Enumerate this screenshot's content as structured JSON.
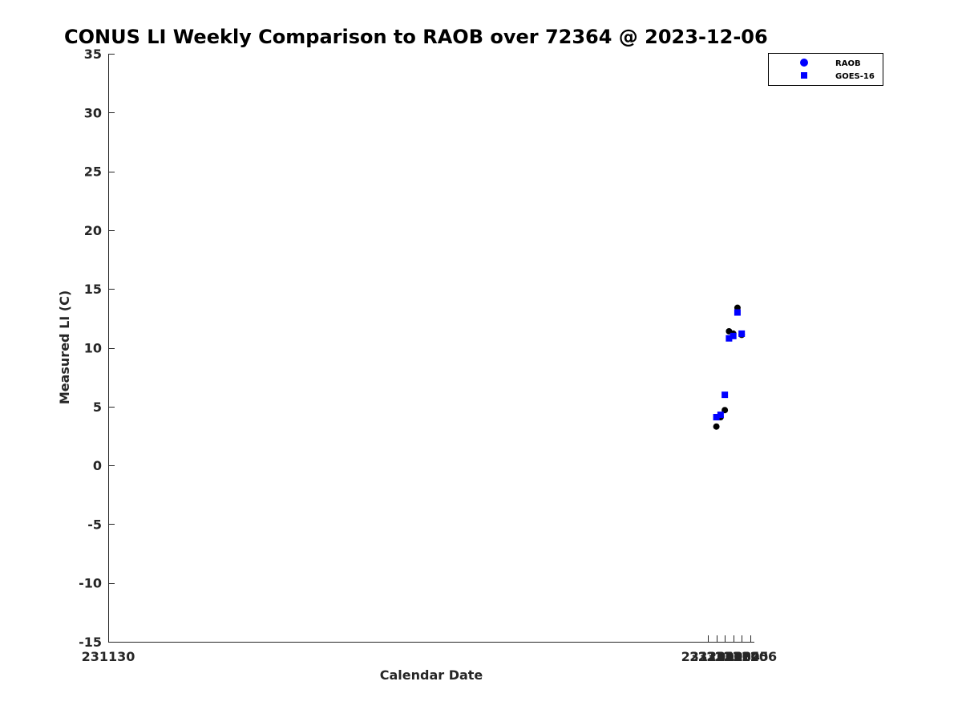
{
  "chart_data": {
    "type": "scatter",
    "title": "CONUS LI Weekly Comparison to RAOB over 72364 @ 2023-12-06",
    "xlabel": "Calendar Date",
    "ylabel": "Measured LI (C)",
    "xlim": [
      231130,
      231206.5
    ],
    "ylim": [
      -15,
      35
    ],
    "x_ticks": [
      231130,
      231201,
      231202,
      231203,
      231204,
      231205,
      231206
    ],
    "x_tick_labels": [
      "231130",
      "231201",
      "231202",
      "231203",
      "231204",
      "231205",
      "231206"
    ],
    "y_ticks": [
      -15,
      -10,
      -5,
      0,
      5,
      10,
      15,
      20,
      25,
      30,
      35
    ],
    "y_tick_labels": [
      "-15",
      "-10",
      "-5",
      "0",
      "5",
      "10",
      "15",
      "20",
      "25",
      "30",
      "35"
    ],
    "grid": false,
    "legend_position": "top-right",
    "series": [
      {
        "name": "RAOB",
        "marker": "circle",
        "color": "#000000",
        "legend_color": "#0000ff",
        "x": [
          231202,
          231202.5,
          231203,
          231203.5,
          231204,
          231204.5,
          231205
        ],
        "y": [
          3.3,
          4.1,
          4.7,
          11.4,
          11.2,
          13.4,
          11.1
        ]
      },
      {
        "name": "GOES-16",
        "marker": "square",
        "color": "#0000ff",
        "legend_color": "#0000ff",
        "x": [
          231202,
          231202.5,
          231203,
          231203.5,
          231204,
          231204.5,
          231205
        ],
        "y": [
          4.1,
          4.3,
          6.0,
          10.8,
          11.0,
          13.0,
          11.2
        ]
      }
    ]
  }
}
